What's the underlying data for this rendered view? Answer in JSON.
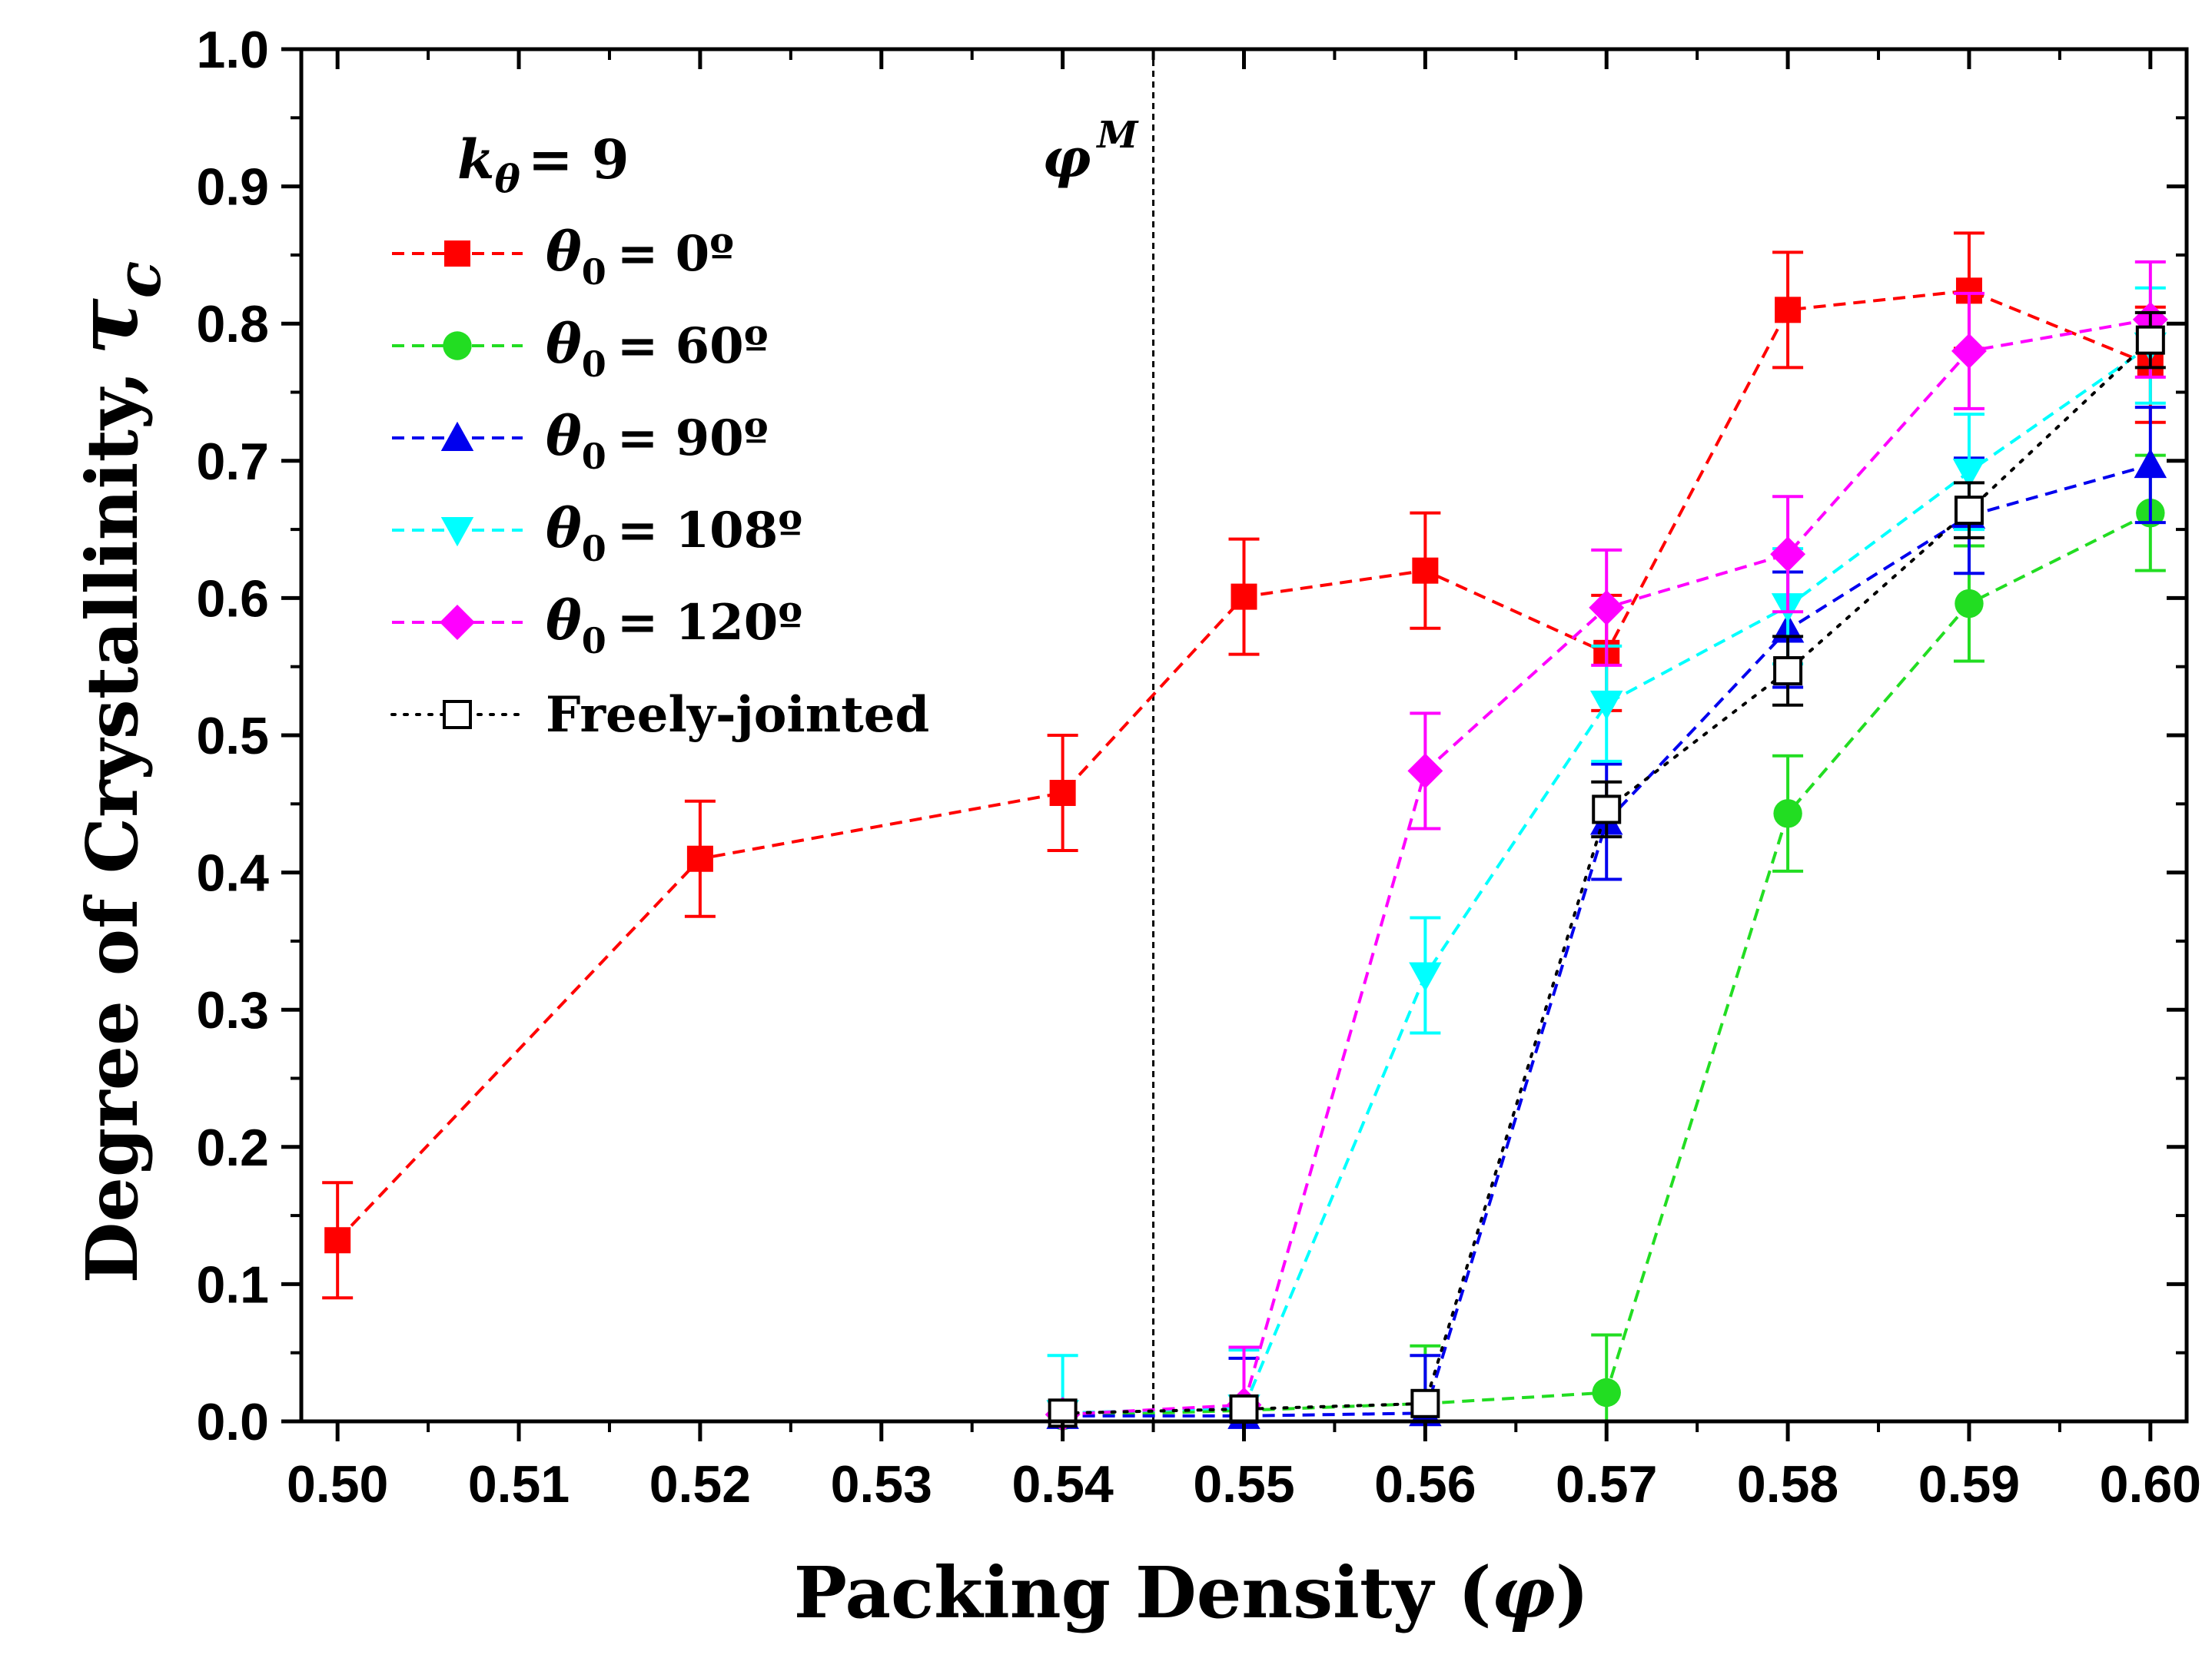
{
  "chart_data": {
    "type": "line",
    "xlabel_main": "Packing Density (",
    "xlabel_symbol": "φ",
    "xlabel_close": ")",
    "ylabel_main": "Degree of Crystallinity,",
    "ylabel_symbol": "τ",
    "ylabel_sub": "c",
    "xlim": [
      0.498,
      0.602
    ],
    "ylim": [
      0.0,
      1.0
    ],
    "x_ticks": [
      "0.50",
      "0.51",
      "0.52",
      "0.53",
      "0.54",
      "0.55",
      "0.56",
      "0.57",
      "0.58",
      "0.59",
      "0.60"
    ],
    "y_ticks": [
      "0.0",
      "0.1",
      "0.2",
      "0.3",
      "0.4",
      "0.5",
      "0.6",
      "0.7",
      "0.8",
      "0.9",
      "1.0"
    ],
    "vline": {
      "x": 0.545,
      "label_symbol": "φ",
      "label_sup": "M"
    },
    "legend_title": {
      "symbol": "k",
      "sub": "θ",
      "text": "= 9"
    },
    "series": [
      {
        "name": "= 0º",
        "color": "#ff0000",
        "marker": "square",
        "dash": "dashed",
        "x": [
          0.5,
          0.52,
          0.54,
          0.55,
          0.56,
          0.57,
          0.58,
          0.59,
          0.6
        ],
        "y": [
          0.132,
          0.41,
          0.458,
          0.601,
          0.62,
          0.56,
          0.81,
          0.824,
          0.77
        ],
        "err": [
          0.042,
          0.042,
          0.042,
          0.042,
          0.042,
          0.042,
          0.042,
          0.042,
          0.042
        ]
      },
      {
        "name": "= 60º",
        "color": "#22dd22",
        "marker": "circle",
        "dash": "dashed",
        "x": [
          0.54,
          0.55,
          0.56,
          0.57,
          0.58,
          0.59,
          0.6
        ],
        "y": [
          0.004,
          0.008,
          0.013,
          0.021,
          0.443,
          0.596,
          0.662
        ],
        "err": [
          0.0,
          0.0,
          0.042,
          0.042,
          0.042,
          0.042,
          0.042
        ]
      },
      {
        "name": "= 90º",
        "color": "#0000ee",
        "marker": "triangle-up",
        "dash": "dashed",
        "x": [
          0.54,
          0.55,
          0.56,
          0.57,
          0.58,
          0.59,
          0.6
        ],
        "y": [
          0.004,
          0.004,
          0.006,
          0.437,
          0.577,
          0.66,
          0.697
        ],
        "err": [
          0.0,
          0.042,
          0.042,
          0.042,
          0.042,
          0.042,
          0.042
        ]
      },
      {
        "name": "= 108º",
        "color": "#00ffff",
        "marker": "triangle-down",
        "dash": "dashed",
        "x": [
          0.54,
          0.55,
          0.56,
          0.57,
          0.58,
          0.59,
          0.6
        ],
        "y": [
          0.006,
          0.01,
          0.325,
          0.523,
          0.594,
          0.692,
          0.784
        ],
        "err": [
          0.042,
          0.042,
          0.042,
          0.042,
          0.042,
          0.042,
          0.042
        ]
      },
      {
        "name": "= 120º",
        "color": "#ff00ff",
        "marker": "diamond",
        "dash": "dashed",
        "x": [
          0.54,
          0.55,
          0.56,
          0.57,
          0.58,
          0.59,
          0.6
        ],
        "y": [
          0.005,
          0.012,
          0.474,
          0.593,
          0.632,
          0.78,
          0.803
        ],
        "err": [
          0.0,
          0.042,
          0.042,
          0.042,
          0.042,
          0.042,
          0.042
        ]
      },
      {
        "name": "Freely-jointed",
        "color": "#000000",
        "marker": "open-square",
        "dash": "dotted",
        "x": [
          0.54,
          0.55,
          0.56,
          0.57,
          0.58,
          0.59,
          0.6
        ],
        "y": [
          0.006,
          0.009,
          0.013,
          0.446,
          0.547,
          0.664,
          0.788
        ],
        "err": [
          0.0,
          0.0,
          0.0,
          0.02,
          0.025,
          0.02,
          0.02
        ]
      }
    ],
    "legend_symbol": "θ",
    "legend_sub": "0"
  }
}
